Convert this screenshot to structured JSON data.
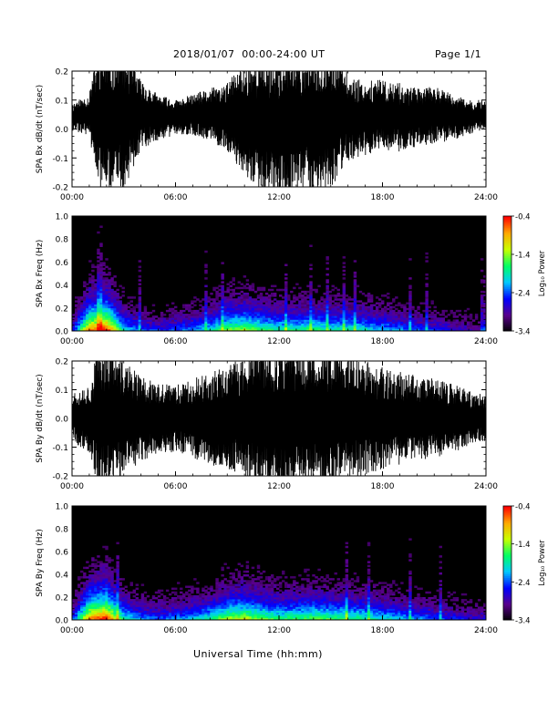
{
  "header": {
    "title": "2018/01/07  00:00-24:00 UT",
    "page": "Page 1/1"
  },
  "xlabel": "Universal Time (hh:mm)",
  "chart_data": [
    {
      "type": "line",
      "title": "",
      "ylabel": "SPA Bx dB/dt (nT/sec)",
      "xlim": [
        0,
        24
      ],
      "ylim": [
        -0.2,
        0.2
      ],
      "xticks": [
        "00:00",
        "06:00",
        "12:00",
        "18:00",
        "24:00"
      ],
      "yticks": [
        "-0.2",
        "-0.1",
        "0.0",
        "0.1",
        "0.2"
      ],
      "series": [
        {
          "x": [
            0,
            1,
            1.5,
            2,
            3,
            4,
            5,
            6,
            7,
            8,
            9,
            10,
            11,
            12,
            13,
            14,
            15,
            16,
            17,
            18,
            19,
            20,
            21,
            22,
            23,
            24
          ],
          "center": [
            0.04,
            0.05,
            0.04,
            0.03,
            0.04,
            0.05,
            0.04,
            0.04,
            0.05,
            0.05,
            0.04,
            0.03,
            0.02,
            0.01,
            0.02,
            0.03,
            0.04,
            0.04,
            0.04,
            0.05,
            0.04,
            0.04,
            0.05,
            0.04,
            0.04,
            0.05
          ],
          "envelope": [
            0.05,
            0.07,
            0.25,
            0.25,
            0.25,
            0.12,
            0.08,
            0.06,
            0.07,
            0.09,
            0.12,
            0.2,
            0.25,
            0.25,
            0.25,
            0.25,
            0.25,
            0.15,
            0.13,
            0.12,
            0.12,
            0.1,
            0.1,
            0.08,
            0.06,
            0.05
          ]
        }
      ]
    },
    {
      "type": "heatmap",
      "title": "",
      "ylabel": "SPA Bx Freq (Hz)",
      "xlim": [
        0,
        24
      ],
      "ylim": [
        0,
        1.0
      ],
      "xticks": [
        "00:00",
        "06:00",
        "12:00",
        "18:00",
        "24:00"
      ],
      "yticks": [
        "0.0",
        "0.2",
        "0.4",
        "0.6",
        "0.8",
        "1.0"
      ],
      "colorbar": {
        "label": "Log₁₀ Power",
        "range": [
          -3.4,
          -0.4
        ],
        "ticks": [
          "-0.4",
          "-1.4",
          "-2.4",
          "-3.4"
        ],
        "colormap": [
          "#000000",
          "#5a008c",
          "#0000ff",
          "#00c8ff",
          "#00ff64",
          "#c8ff00",
          "#ffaa00",
          "#ff0000"
        ]
      },
      "activity": [
        0.25,
        0.9,
        1.0,
        0.5,
        0.35,
        0.3,
        0.35,
        0.4,
        0.5,
        0.65,
        0.7,
        0.6,
        0.55,
        0.55,
        0.6,
        0.55,
        0.55,
        0.5,
        0.45,
        0.4,
        0.35,
        0.3,
        0.25,
        0.2,
        0.2
      ]
    },
    {
      "type": "line",
      "title": "",
      "ylabel": "SPA By dB/dt (nT/sec)",
      "xlim": [
        0,
        24
      ],
      "ylim": [
        -0.2,
        0.2
      ],
      "xticks": [
        "00:00",
        "06:00",
        "12:00",
        "18:00",
        "24:00"
      ],
      "yticks": [
        "-0.2",
        "-0.1",
        "0.0",
        "0.1",
        "0.2"
      ],
      "series": [
        {
          "x": [
            0,
            1,
            1.5,
            2,
            3,
            4,
            5,
            6,
            7,
            8,
            9,
            10,
            11,
            12,
            13,
            14,
            15,
            16,
            17,
            18,
            19,
            20,
            21,
            22,
            23,
            24
          ],
          "center": [
            0.01,
            0.0,
            0.0,
            0.0,
            0.0,
            0.0,
            0.0,
            0.0,
            0.0,
            0.0,
            0.0,
            0.0,
            0.0,
            0.0,
            0.0,
            0.0,
            0.0,
            0.0,
            0.0,
            0.0,
            0.0,
            0.0,
            0.0,
            0.0,
            0.0,
            0.0
          ],
          "envelope": [
            0.09,
            0.12,
            0.25,
            0.25,
            0.2,
            0.15,
            0.12,
            0.12,
            0.14,
            0.16,
            0.18,
            0.22,
            0.25,
            0.25,
            0.25,
            0.25,
            0.25,
            0.22,
            0.2,
            0.18,
            0.17,
            0.15,
            0.14,
            0.12,
            0.1,
            0.08
          ]
        }
      ]
    },
    {
      "type": "heatmap",
      "title": "",
      "ylabel": "SPA By Freq (Hz)",
      "xlim": [
        0,
        24
      ],
      "ylim": [
        0,
        1.0
      ],
      "xticks": [
        "00:00",
        "06:00",
        "12:00",
        "18:00",
        "24:00"
      ],
      "yticks": [
        "0.0",
        "0.2",
        "0.4",
        "0.6",
        "0.8",
        "1.0"
      ],
      "colorbar": {
        "label": "Log₁₀ Power",
        "range": [
          -3.4,
          -0.4
        ],
        "ticks": [
          "-0.4",
          "-1.4",
          "-2.4",
          "-3.4"
        ],
        "colormap": [
          "#000000",
          "#5a008c",
          "#0000ff",
          "#00c8ff",
          "#00ff64",
          "#c8ff00",
          "#ffaa00",
          "#ff0000"
        ]
      },
      "activity": [
        0.3,
        0.9,
        1.0,
        0.55,
        0.4,
        0.35,
        0.4,
        0.45,
        0.55,
        0.7,
        0.75,
        0.65,
        0.6,
        0.6,
        0.65,
        0.6,
        0.6,
        0.55,
        0.5,
        0.45,
        0.4,
        0.35,
        0.3,
        0.25,
        0.25
      ]
    }
  ]
}
